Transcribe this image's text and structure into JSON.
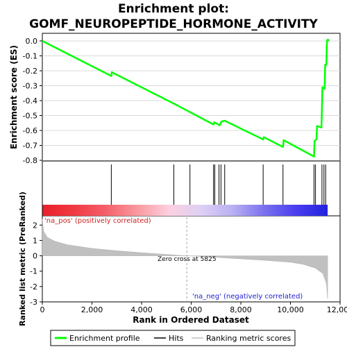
{
  "title_line1": "Enrichment plot:",
  "title_line2": "GOMF_NEUROPEPTIDE_HORMONE_ACTIVITY",
  "chart_data": {
    "type": "line",
    "es_panel": {
      "ylabel": "Enrichment score (ES)",
      "ylim": [
        -0.8,
        0.0
      ],
      "yticks": [
        0.0,
        -0.1,
        -0.2,
        -0.3,
        -0.4,
        -0.5,
        -0.6,
        -0.7,
        -0.8
      ],
      "ytick_labels": [
        "0.0",
        "-0.1",
        "-0.2",
        "-0.3",
        "-0.4",
        "-0.5",
        "-0.6",
        "-0.7",
        "-0.8"
      ],
      "series_color": "#00ff00",
      "es_curve": [
        [
          0,
          0.0
        ],
        [
          2780,
          -0.235
        ],
        [
          2800,
          -0.21
        ],
        [
          5300,
          -0.42
        ],
        [
          6900,
          -0.56
        ],
        [
          6930,
          -0.545
        ],
        [
          7150,
          -0.565
        ],
        [
          7220,
          -0.54
        ],
        [
          7350,
          -0.535
        ],
        [
          8900,
          -0.66
        ],
        [
          8930,
          -0.645
        ],
        [
          9700,
          -0.71
        ],
        [
          9730,
          -0.665
        ],
        [
          10950,
          -0.775
        ],
        [
          10970,
          -0.67
        ],
        [
          11050,
          -0.66
        ],
        [
          11070,
          -0.57
        ],
        [
          11250,
          -0.58
        ],
        [
          11270,
          -0.45
        ],
        [
          11290,
          -0.31
        ],
        [
          11380,
          -0.32
        ],
        [
          11400,
          -0.16
        ],
        [
          11450,
          -0.16
        ],
        [
          11470,
          0.0
        ],
        [
          11510,
          0.01
        ],
        [
          11550,
          0.0
        ]
      ]
    },
    "hits": [
      2780,
      5300,
      5950,
      6900,
      6950,
      7120,
      7200,
      7350,
      8900,
      9700,
      10950,
      11010,
      11270,
      11350,
      11420
    ],
    "heatmap_stops": [
      "#e8202a",
      "#f03a44",
      "#f5606a",
      "#f99aa0",
      "#fbd0e0",
      "#ded0f4",
      "#b8b0f2",
      "#7a70ee",
      "#4a3ef0",
      "#2222dd"
    ],
    "metric_panel": {
      "ylabel": "Ranked list metric (PreRanked)",
      "ylim": [
        -3,
        2.6
      ],
      "yticks": [
        2,
        1,
        0,
        -1,
        -2,
        -3
      ],
      "ytick_labels": [
        "2",
        "1",
        "0",
        "-1",
        "-2",
        "-3"
      ],
      "fill_color": "#c0c0c0",
      "metric_curve": [
        [
          0,
          2.4
        ],
        [
          50,
          1.6
        ],
        [
          200,
          1.2
        ],
        [
          500,
          0.95
        ],
        [
          1000,
          0.72
        ],
        [
          2000,
          0.48
        ],
        [
          3000,
          0.33
        ],
        [
          4000,
          0.2
        ],
        [
          5000,
          0.09
        ],
        [
          5825,
          0.0
        ],
        [
          7000,
          -0.1
        ],
        [
          8000,
          -0.2
        ],
        [
          9000,
          -0.3
        ],
        [
          10000,
          -0.42
        ],
        [
          10500,
          -0.55
        ],
        [
          11000,
          -0.8
        ],
        [
          11300,
          -1.15
        ],
        [
          11450,
          -1.8
        ],
        [
          11500,
          -2.8
        ]
      ],
      "zero_cross": 5825
    },
    "x_range": [
      0,
      12000
    ],
    "xticks": [
      0,
      2000,
      4000,
      6000,
      8000,
      10000,
      12000
    ],
    "xtick_labels": [
      "0",
      "2,000",
      "4,000",
      "6,000",
      "8,000",
      "10,000",
      "12,000"
    ],
    "xlabel": "Rank in Ordered Dataset",
    "list_length": 11500,
    "annotations": {
      "pos_label": "'na_pos' (positively correlated)",
      "neg_label": "'na_neg' (negatively correlated)",
      "zero_cross_label": "Zero cross at 5825"
    },
    "legend": {
      "placement": "bottom",
      "items": [
        {
          "label": "Enrichment profile",
          "color": "#00ff00"
        },
        {
          "label": "Hits",
          "color": "#000000"
        },
        {
          "label": "Ranking metric scores",
          "color": "#c0c0c0"
        }
      ]
    }
  }
}
